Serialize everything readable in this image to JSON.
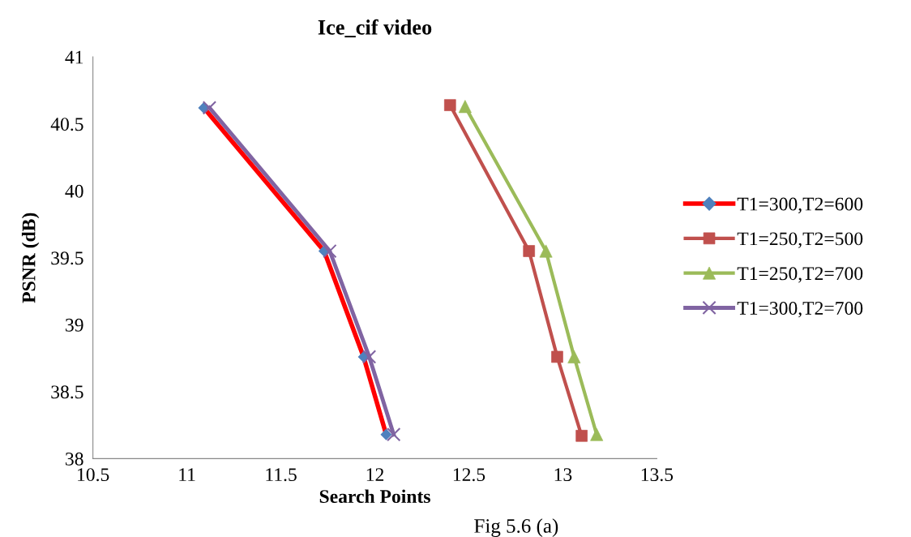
{
  "chart_data": {
    "type": "line",
    "title": "Ice_cif video",
    "xlabel": "Search Points",
    "ylabel": "PSNR (dB)",
    "xlim": [
      10.5,
      13.5
    ],
    "xticks": [
      10.5,
      11,
      11.5,
      12,
      12.5,
      13,
      13.5
    ],
    "ylim": [
      38,
      41
    ],
    "yticks": [
      38,
      38.5,
      39,
      39.5,
      40,
      40.5,
      41
    ],
    "grid": false,
    "legend": "right",
    "line_style": "solid",
    "annotations": [
      "Fig 5.6 (a)"
    ],
    "series": [
      {
        "name": "T1=300,T2=600",
        "color": "#ff0000",
        "colors": [
          "#4f81bd",
          "#4f81bd",
          "#4f81bd",
          "#4f81bd"
        ],
        "marker": "diamond",
        "x": [
          11.09,
          11.73,
          11.94,
          12.06
        ],
        "values": [
          40.62,
          39.55,
          38.76,
          38.18
        ]
      },
      {
        "name": "T1=250,T2=500",
        "color": "#c0504d",
        "marker": "square",
        "x": [
          12.4,
          12.82,
          12.97,
          13.1
        ],
        "values": [
          40.64,
          39.55,
          38.76,
          38.17
        ]
      },
      {
        "name": "T1=250,T2=700",
        "color": "#9bbb59",
        "marker": "triangle",
        "x": [
          12.48,
          12.91,
          13.06,
          13.18
        ],
        "values": [
          40.63,
          39.55,
          38.76,
          38.18
        ]
      },
      {
        "name": "T1=300,T2=700",
        "color": "#8064a2",
        "marker": "cross",
        "x": [
          11.12,
          11.76,
          11.97,
          12.1
        ],
        "values": [
          40.62,
          39.55,
          38.76,
          38.18
        ]
      }
    ]
  }
}
